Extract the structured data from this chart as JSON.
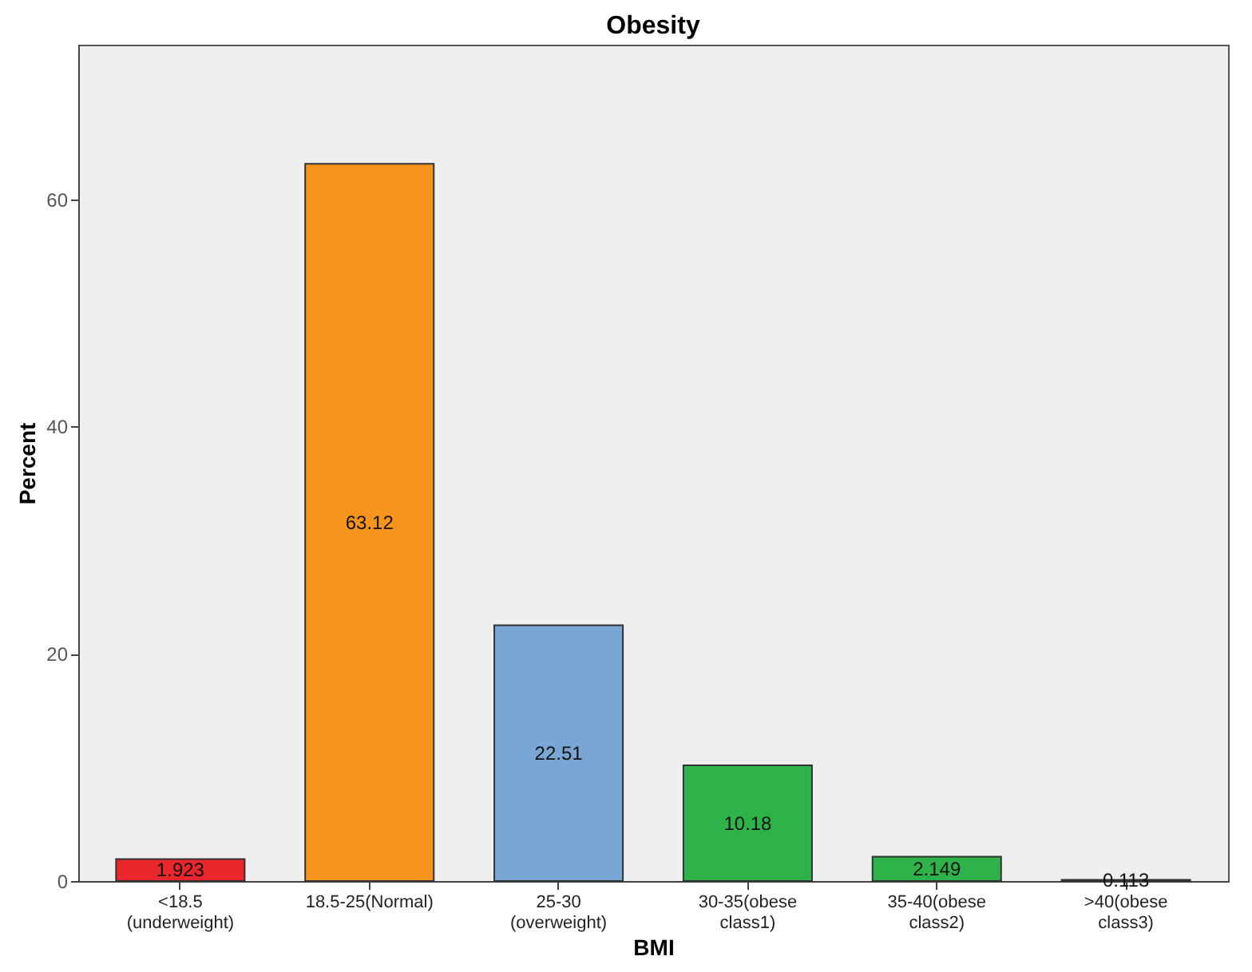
{
  "chart_data": {
    "type": "bar",
    "title": "Obesity",
    "xlabel": "BMI",
    "ylabel": "Percent",
    "categories": [
      "<18.5 (underweight)",
      "18.5-25(Normal)",
      "25-30 (overweight)",
      "30-35(obese class1)",
      "35-40(obese class2)",
      ">40(obese class3)"
    ],
    "values": [
      1.923,
      63.12,
      22.51,
      10.18,
      2.149,
      0.113
    ],
    "colors": [
      "#e8262b",
      "#f7941d",
      "#7aa6d6",
      "#2db34a",
      "#2db34a",
      "#2db34a"
    ],
    "ylim": [
      0,
      73.6
    ],
    "yticks": [
      0,
      20,
      40,
      60
    ],
    "grid": false,
    "data_labels": true
  }
}
